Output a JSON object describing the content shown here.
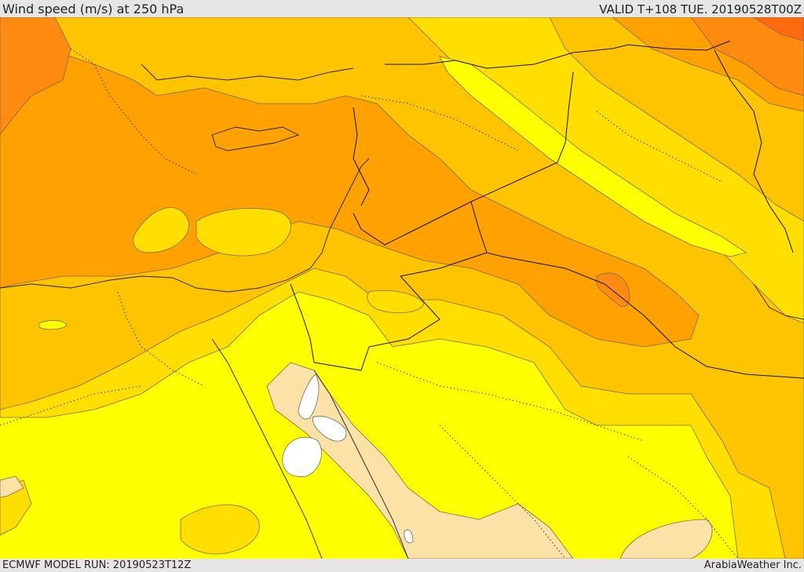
{
  "header": {
    "title": "Wind speed (m/s) at 250 hPa",
    "valid": "VALID T+108 TUE. 20190528T00Z"
  },
  "footer": {
    "model_run": "ECMWF MODEL RUN: 20190523T12Z",
    "credit": "ArabiaWeather Inc."
  },
  "colors": {
    "band_lightest": "#fde2a8",
    "band_yellow": "#ffff00",
    "band_gold": "#ffde00",
    "band_amber": "#ffc400",
    "band_orange": "#ffa100",
    "band_dark_orange": "#ff8a10",
    "band_red_orange": "#ff6a10"
  }
}
